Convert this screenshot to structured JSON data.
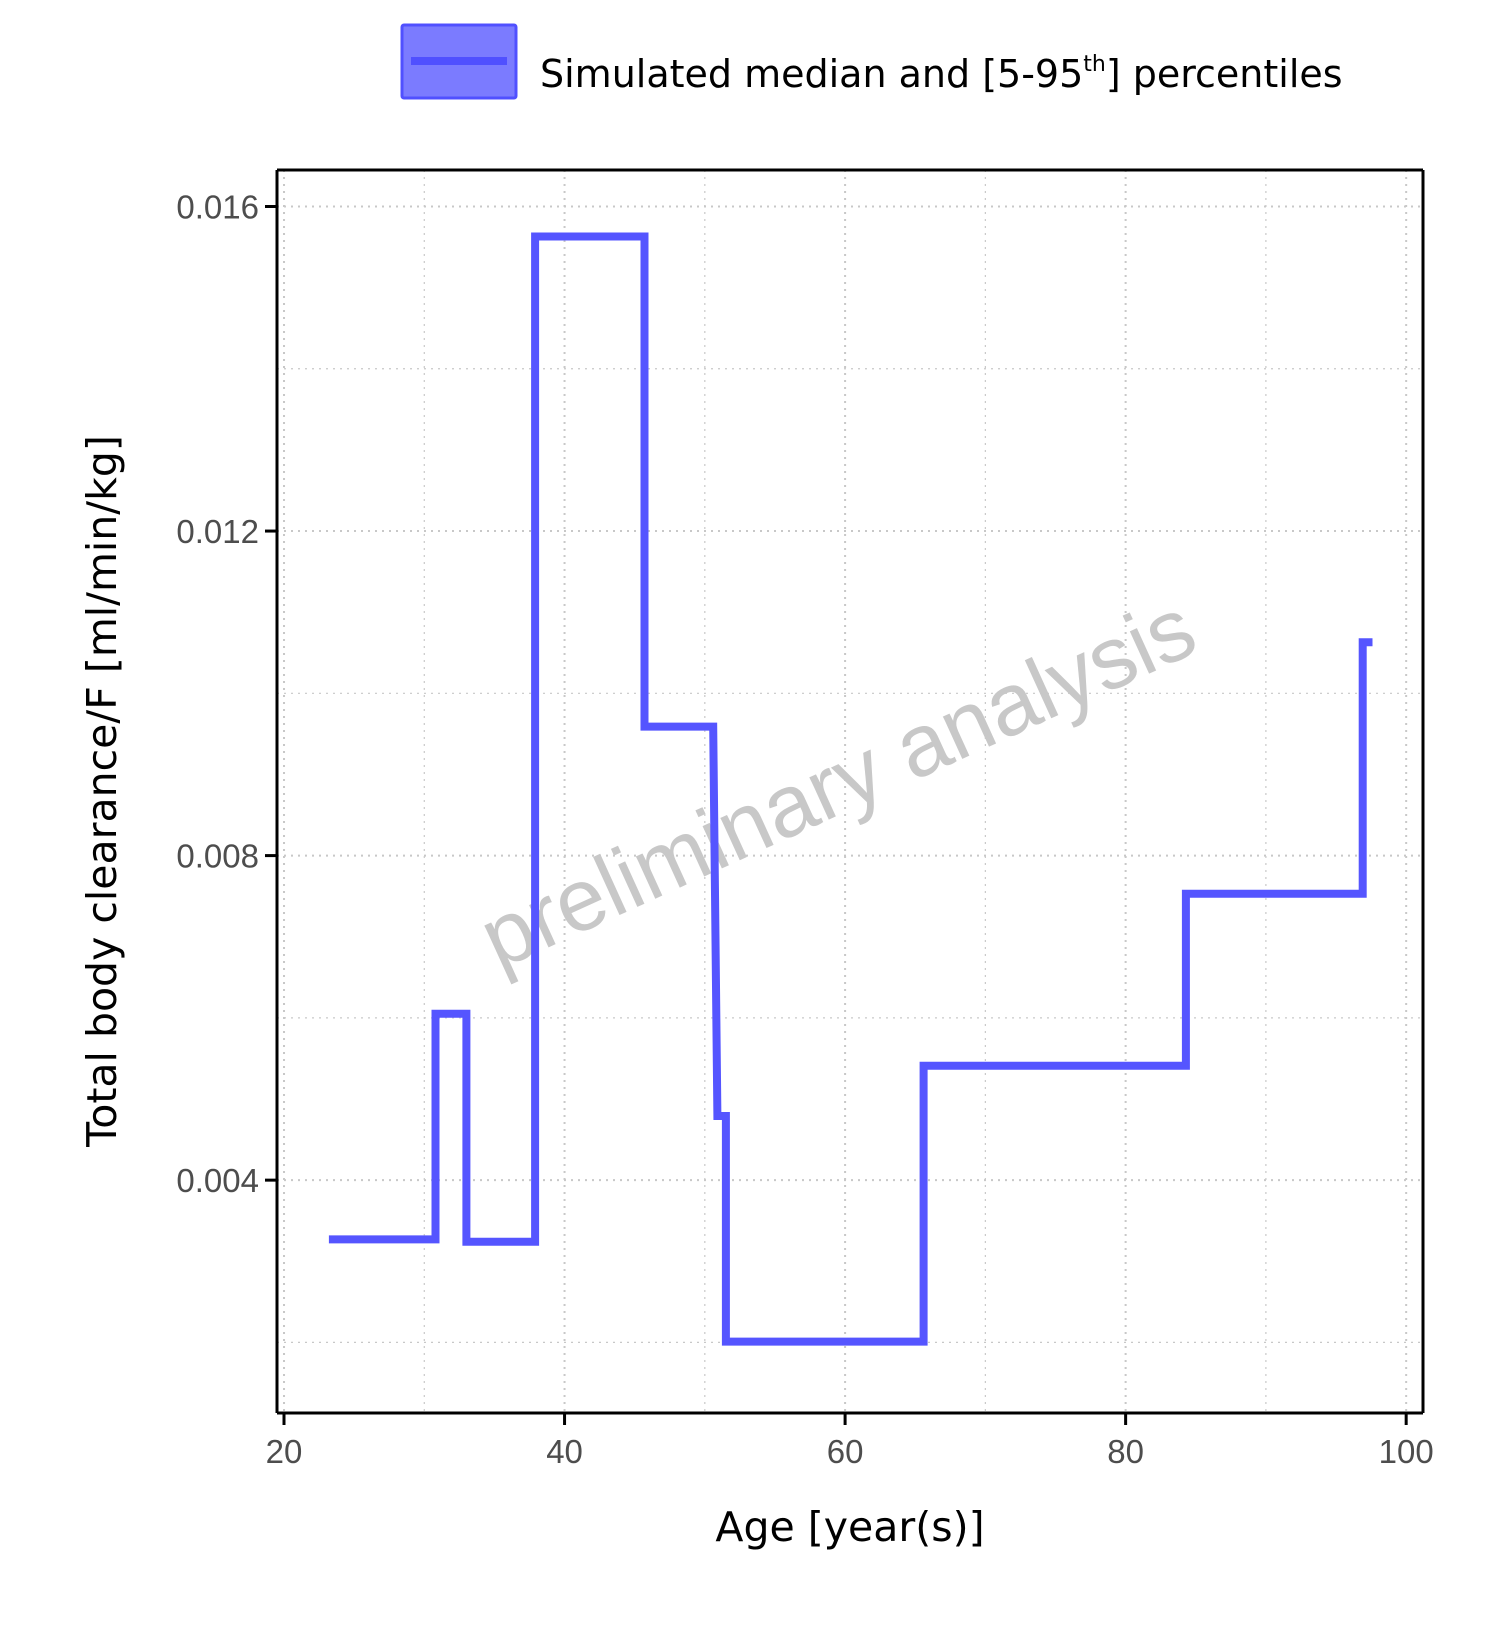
{
  "legend": {
    "label_prefix": "Simulated median and [5-95",
    "label_superscript": "th",
    "label_suffix": "] percentiles",
    "swatch_fill": "#7b7bff",
    "swatch_border": "#5050ff"
  },
  "watermark": "preliminary analysis",
  "colors": {
    "series": "#5555ff",
    "axis": "#000000",
    "grid": "#c8c8c8",
    "tick_text": "#4d4d4d",
    "watermark": "#c8c8c8"
  },
  "chart_data": {
    "type": "line",
    "step": true,
    "xlabel": "Age [year(s)]",
    "ylabel": "Total body clearance/F [ml/min/kg]",
    "xlim": [
      19.5,
      101.2
    ],
    "ylim": [
      0.00113,
      0.01645
    ],
    "xticks": [
      20,
      40,
      60,
      80,
      100
    ],
    "xtick_labels": [
      "20",
      "40",
      "60",
      "80",
      "100"
    ],
    "yticks": [
      0.004,
      0.008,
      0.012,
      0.016
    ],
    "ytick_labels": [
      "0.004",
      "0.008",
      "0.012",
      "0.016"
    ],
    "y_minor_gridlines": [
      0.002,
      0.006,
      0.01,
      0.014
    ],
    "x_minor_gridlines": [
      30,
      50,
      70,
      90
    ],
    "grid": true,
    "legend_position": "top",
    "series": [
      {
        "name": "Simulated median and [5-95th] percentiles",
        "x": [
          23.2,
          30.8,
          30.8,
          33.0,
          33.0,
          37.9,
          37.9,
          45.7,
          45.7,
          50.6,
          50.9,
          51.5,
          51.5,
          65.6,
          65.6,
          84.3,
          84.3,
          96.9,
          96.9,
          97.6
        ],
        "y": [
          0.00327,
          0.00327,
          0.00605,
          0.00605,
          0.00324,
          0.00324,
          0.01563,
          0.01563,
          0.00959,
          0.00959,
          0.00479,
          0.00479,
          0.00201,
          0.00201,
          0.00541,
          0.00541,
          0.00753,
          0.00753,
          0.01063,
          0.01063
        ]
      }
    ]
  }
}
